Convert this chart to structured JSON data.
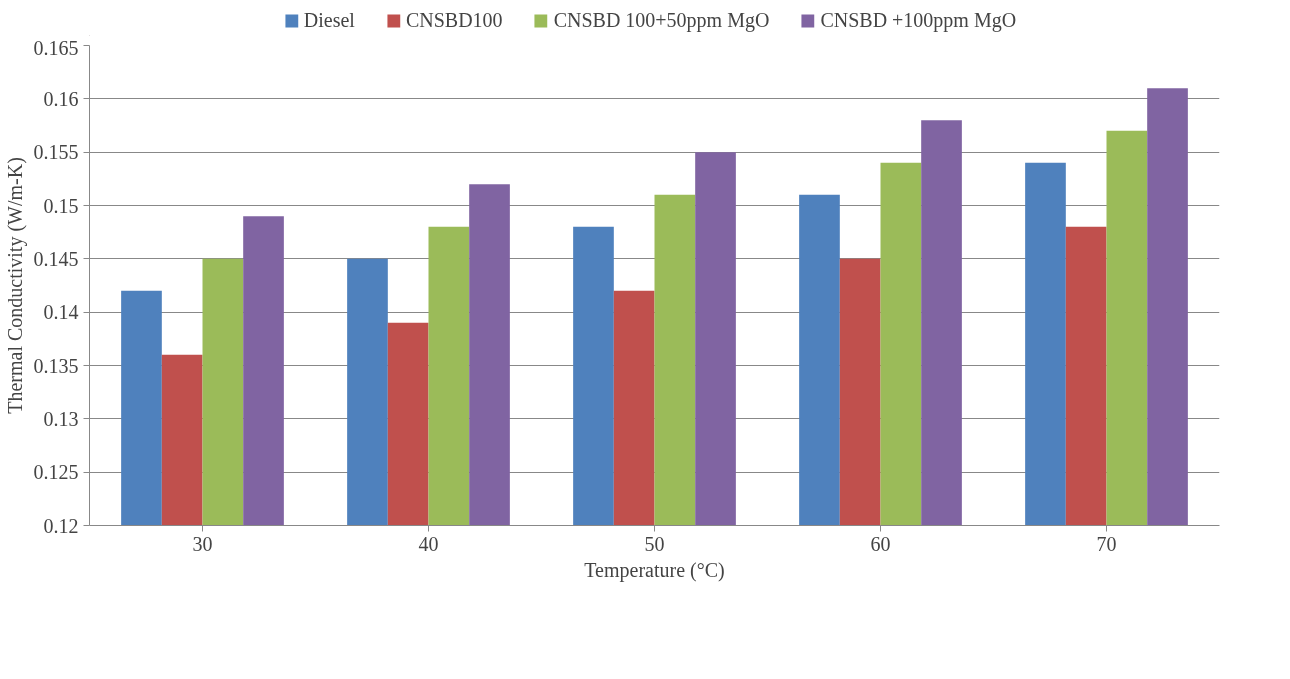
{
  "chart_data": {
    "type": "bar",
    "xlabel": "Temperature (°C)",
    "ylabel": "Thermal Conductivity (W/m-K)",
    "categories": [
      "30",
      "40",
      "50",
      "60",
      "70"
    ],
    "series": [
      {
        "name": "Diesel",
        "color": "#4f81bd",
        "values": [
          0.142,
          0.145,
          0.148,
          0.151,
          0.154
        ]
      },
      {
        "name": "CNSBD100",
        "color": "#c0504d",
        "values": [
          0.136,
          0.139,
          0.142,
          0.145,
          0.148
        ]
      },
      {
        "name": "CNSBD 100+50ppm MgO",
        "color": "#9bbb59",
        "values": [
          0.145,
          0.148,
          0.151,
          0.154,
          0.157
        ]
      },
      {
        "name": "CNSBD +100ppm MgO",
        "color": "#8064a2",
        "values": [
          0.149,
          0.152,
          0.155,
          0.158,
          0.161
        ]
      }
    ],
    "ylim": [
      0.12,
      0.165
    ],
    "yticks": [
      0.12,
      0.125,
      0.13,
      0.135,
      0.14,
      0.145,
      0.15,
      0.155,
      0.16,
      0.165
    ],
    "grid": "y",
    "legend": "top"
  }
}
